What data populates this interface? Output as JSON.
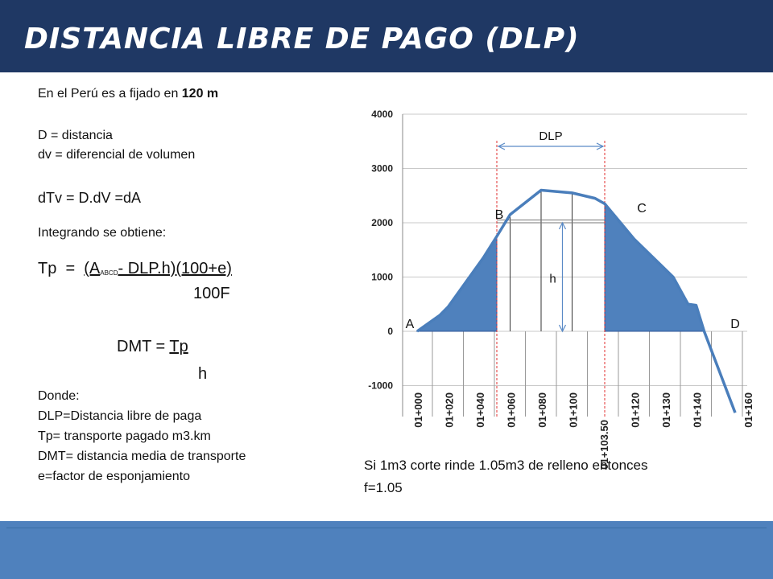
{
  "slide": {
    "title": "DISTANCIA LIBRE DE PAGO (DLP)"
  },
  "left": {
    "line1_prefix": "En el Perú es a fijado en ",
    "line1_value": "120 m",
    "def_d": "D   = distancia",
    "def_dv": "dv = diferencial  de volumen",
    "formula1": "dTv = D.dV =dA",
    "integrando": "Integrando se obtiene:",
    "tp_lhs": "Tp  =  ",
    "tp_num_a": "(A",
    "tp_num_sub": "ABCD",
    "tp_num_rest": "- DLP.h)(100+e)",
    "tp_den": "100F",
    "dmt_lhs": "DMT = ",
    "dmt_num": "Tp",
    "dmt_den": "h",
    "donde": "Donde:",
    "def_dlp": "DLP=Distancia libre de paga",
    "def_tp": "Tp= transporte pagado m3.km",
    "def_dmt": "DMT= distancia media de transporte",
    "def_e": "e=factor de esponjamiento"
  },
  "note": {
    "line1": "Si 1m3 corte rinde 1.05m3 de relleno entonces",
    "line2": "f=1.05"
  },
  "chart_data": {
    "type": "line",
    "title": "",
    "xlabel": "",
    "ylabel": "",
    "ylim": [
      -1000,
      4000
    ],
    "yticks": [
      4000,
      3000,
      2000,
      1000,
      0,
      -1000
    ],
    "categories": [
      "01+000",
      "01+020",
      "01+040",
      "01+060",
      "01+080",
      "01+100",
      "01+103.50",
      "01+120",
      "01+130",
      "01+140",
      "01+160"
    ],
    "series": [
      {
        "values": [
          0,
          400,
          1750,
          2150,
          2600,
          2550,
          2450,
          1700,
          1100,
          450,
          -1500
        ]
      }
    ],
    "annotations": {
      "dlp": "DLP",
      "h": "h",
      "A": "A",
      "B": "B",
      "C": "C",
      "D": "D"
    },
    "line_color": "#4a7ebb",
    "fill_color": "#4f81bd",
    "guide_color": "#e03030"
  }
}
